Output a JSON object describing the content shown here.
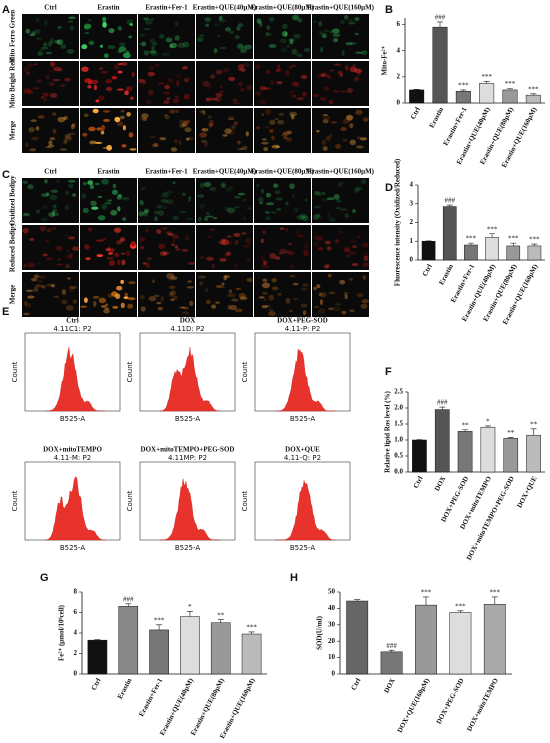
{
  "panel_letters": [
    "A",
    "B",
    "C",
    "D",
    "E",
    "F",
    "G",
    "H"
  ],
  "image_panels": [
    {
      "columns": [
        "Ctrl",
        "Erastin",
        "Erastin+Fer-1",
        "Erastin+QUE(40μM)",
        "Erastin+QUE(80μM)",
        "Erastin+QUE(160μM)"
      ],
      "rows": [
        "Mito Ferro Green",
        "Mito Bright Red",
        "Merge"
      ]
    },
    {
      "columns": [
        "Ctrl",
        "Erastin",
        "Erastin+Fer-1",
        "Erastin+QUE(40μM)",
        "Erastin+QUE(80μM)",
        "Erastin+QUE(160μM)"
      ],
      "rows": [
        "Oxidized Bodipy",
        "Reduced Bodipy",
        "Merge"
      ]
    }
  ],
  "flow_panels": {
    "x_label": "B525-A",
    "y_label": "Count",
    "plots": [
      {
        "title": "Ctrl",
        "gate": "4.11C1: P2"
      },
      {
        "title": "DOX",
        "gate": "4.11D: P2"
      },
      {
        "title": "DOX+PEG-SOD",
        "gate": "4.11-P: P2"
      },
      {
        "title": "DOX+mitoTEMPO",
        "gate": "4.11-M: P2"
      },
      {
        "title": "DOX+mitoTEMPO+PEG-SOD",
        "gate": "4.11MP: P2"
      },
      {
        "title": "DOX+QUE",
        "gate": "4.11-Q: P2"
      }
    ]
  },
  "chart_data": [
    {
      "type": "bar",
      "y_label": "Mito-Fe²⁺",
      "categories": [
        "Ctrl",
        "Erastin",
        "Erastin+Fer-1",
        "Erastin+QUE(40μM)",
        "Erastin+QUE(80μM)",
        "Erastin+QUE(160μM)"
      ],
      "values": [
        1,
        5.8,
        0.9,
        1.5,
        1.0,
        0.6
      ],
      "errors": [
        0.05,
        0.4,
        0.1,
        0.15,
        0.1,
        0.1
      ],
      "annotations": [
        null,
        "###",
        "***",
        "***",
        "***",
        "***"
      ],
      "colors": [
        "#111111",
        "#555555",
        "#777777",
        "#dddddd",
        "#999999",
        "#bbbbbb"
      ],
      "ylim": [
        0,
        6.5
      ],
      "yticks": [
        0,
        2,
        4,
        6
      ]
    },
    {
      "type": "bar",
      "y_label": "Fluorescence intensity (Oxidized/Reduced)",
      "categories": [
        "Ctrl",
        "Erastin",
        "Erastin+Fer-1",
        "Erastin+QUE(40μM)",
        "Erastin+QUE(80μM)",
        "Erastin+QUE(160μM)"
      ],
      "values": [
        1,
        2.85,
        0.8,
        1.2,
        0.75,
        0.75
      ],
      "errors": [
        0.02,
        0.08,
        0.1,
        0.2,
        0.15,
        0.1
      ],
      "annotations": [
        null,
        "###",
        "***",
        "***",
        "***",
        "***"
      ],
      "colors": [
        "#111111",
        "#555555",
        "#777777",
        "#dddddd",
        "#999999",
        "#bbbbbb"
      ],
      "ylim": [
        0,
        4
      ],
      "yticks": [
        0,
        1,
        2,
        3,
        4
      ]
    },
    {
      "type": "bar",
      "y_label": "Relative lipid Ros level (%)",
      "categories": [
        "Ctrl",
        "DOX",
        "DOX+PEG-SOD",
        "DOX+mitoTEMPO",
        "DOX+mitoTEMPO+PEG-SOD",
        "DOX+QUE"
      ],
      "values": [
        1,
        1.95,
        1.27,
        1.4,
        1.05,
        1.15
      ],
      "errors": [
        0.01,
        0.08,
        0.05,
        0.04,
        0.03,
        0.2
      ],
      "annotations": [
        null,
        "###",
        "**",
        "*",
        "**",
        "**"
      ],
      "colors": [
        "#111111",
        "#555555",
        "#777777",
        "#dddddd",
        "#999999",
        "#bbbbbb"
      ],
      "ylim": [
        0,
        2.5
      ],
      "yticks": [
        {
          "value": 0,
          "label": "0.0"
        },
        {
          "value": 0.5,
          "label": "0.5"
        },
        {
          "value": 1,
          "label": "1.0"
        },
        {
          "value": 1.5,
          "label": "1.5"
        },
        {
          "value": 2,
          "label": "2.0"
        },
        {
          "value": 2.5,
          "label": "2.5"
        }
      ]
    },
    {
      "type": "bar",
      "y_label": "Fe²⁺ (μmol/10⁶cell)",
      "categories": [
        "Ctrl",
        "Erastin",
        "Erastin+Fer-1",
        "Erastin+QUE(40μM)",
        "Erastin+QUE(80μM)",
        "Erastin+QUE(160μM)"
      ],
      "values": [
        3.3,
        6.6,
        4.3,
        5.6,
        5.0,
        3.9
      ],
      "errors": [
        0.05,
        0.25,
        0.5,
        0.5,
        0.3,
        0.2
      ],
      "annotations": [
        null,
        "###",
        "***",
        "*",
        "**",
        "***"
      ],
      "colors": [
        "#111111",
        "#888888",
        "#777777",
        "#dddddd",
        "#999999",
        "#bbbbbb"
      ],
      "ylim": [
        0,
        8
      ],
      "yticks": [
        0,
        2,
        4,
        6,
        8
      ]
    },
    {
      "type": "bar",
      "y_label": "SOD(U/ml)",
      "categories": [
        "Ctrl",
        "DOX",
        "DOX+QUE(160μM)",
        "DOX+PEG-SOD",
        "DOX+mitoTEMPO"
      ],
      "values": [
        44.5,
        13.5,
        42,
        37.5,
        42.5
      ],
      "errors": [
        0.8,
        1,
        5,
        1,
        4.5
      ],
      "annotations": [
        null,
        "###",
        "***",
        "***",
        "***"
      ],
      "colors": [
        "#666666",
        "#777777",
        "#999999",
        "#dddddd",
        "#aaaaaa"
      ],
      "ylim": [
        0,
        50
      ],
      "yticks": [
        0,
        10,
        20,
        30,
        40,
        50
      ]
    }
  ]
}
